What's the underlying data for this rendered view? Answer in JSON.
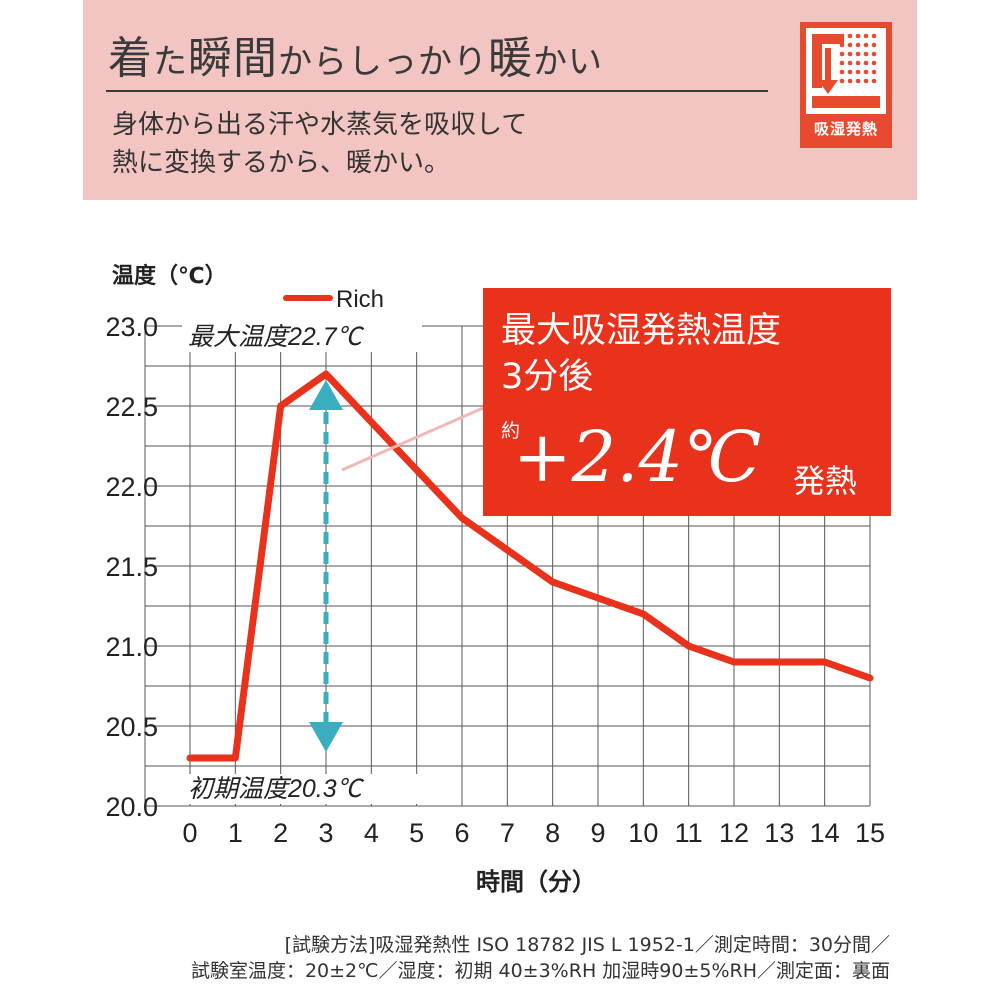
{
  "header": {
    "headline_parts": [
      "着",
      "た",
      "瞬間",
      "から",
      "しっかり",
      "暖",
      "かい"
    ],
    "sub_line1": "身体から出る汗や水蒸気を吸収して",
    "sub_line2": "熱に変換するから、暖かい。",
    "badge_label": "吸湿発熱"
  },
  "chart_data": {
    "type": "line",
    "xlabel": "時間（分）",
    "ylabel": "温度（℃）",
    "x": [
      0,
      1,
      2,
      3,
      4,
      5,
      6,
      7,
      8,
      9,
      10,
      11,
      12,
      13,
      14,
      15
    ],
    "series": [
      {
        "name": "Rich",
        "values": [
          20.3,
          20.3,
          22.5,
          22.7,
          22.4,
          22.1,
          21.8,
          21.6,
          21.4,
          21.3,
          21.2,
          21.0,
          20.9,
          20.9,
          20.9,
          20.8
        ]
      }
    ],
    "xlim": [
      0,
      15
    ],
    "ylim": [
      20.0,
      23.0
    ],
    "yticks": [
      "20.0",
      "20.5",
      "21.0",
      "21.5",
      "22.0",
      "22.5",
      "23.0"
    ],
    "xticks": [
      "0",
      "1",
      "2",
      "3",
      "4",
      "5",
      "6",
      "7",
      "8",
      "9",
      "10",
      "11",
      "12",
      "13",
      "14",
      "15"
    ],
    "grid": true,
    "legend": "top-left",
    "line_color": "#e8321b",
    "arrow_color": "#3aaebf",
    "annotations": {
      "max_label": "最大温度22.7℃",
      "initial_label": "初期温度20.3℃"
    }
  },
  "callout": {
    "line1": "最大吸湿発熱温度",
    "line2": "3分後",
    "prefix": "約",
    "value": "+2.4℃",
    "suffix": "発熱"
  },
  "footnote": {
    "line1": "[試験方法]吸湿発熱性 ISO 18782 JIS L 1952-1／測定時間：30分間／",
    "line2": "試験室温度：20±2℃／湿度：初期 40±3%RH 加湿時90±5%RH／測定面：裏面"
  }
}
